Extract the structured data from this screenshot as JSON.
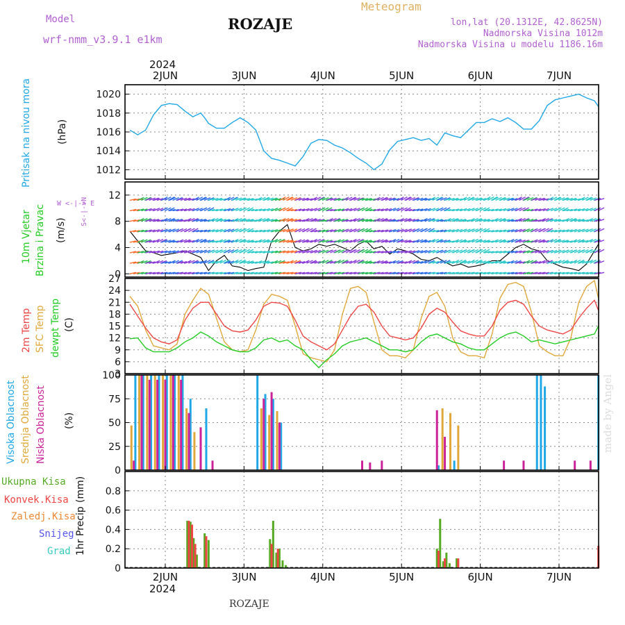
{
  "header": {
    "model_label": "Model",
    "model_name": "wrf-nmm_v3.9.1  e1km",
    "location": "ROZAJE",
    "meteogram_label": "Meteogram",
    "lonlat": "lon,lat (20.1312E, 42.8625N)",
    "altitude": "Nadmorska Visina 1012m",
    "model_altitude": "Nadmorska Visina u modelu 1186.16m"
  },
  "footer_location": "ROZAJE",
  "watermark": "made by Angel",
  "colors": {
    "pressure": "#1fa7e6",
    "temp2m": "#ee4444",
    "sfc": "#e0a83a",
    "dewpt": "#22cc22",
    "high_cloud": "#1fa7e6",
    "mid_cloud": "#e0a83a",
    "low_cloud": "#cc2299",
    "total_precip": "#55aa22",
    "convective": "#ee4444",
    "snow": "#5555ee",
    "graupel": "#33ccbb",
    "frozen": "#ee8833",
    "model_text": "#b060d0",
    "meteogram_text": "#e0b060"
  },
  "x_axis": {
    "year": "2024",
    "days": [
      "2JUN",
      "3JUN",
      "4JUN",
      "5JUN",
      "6JUN",
      "7JUN"
    ]
  },
  "wind_legend": {
    "n": "N",
    "s": "S",
    "w": "W",
    "e": "E",
    "arrows": "W <-|-> E",
    "ns": "S<-|->N"
  },
  "chart_data": [
    {
      "type": "line",
      "panel": "pressure",
      "ylabel_title": "Pritisak na nivou mora",
      "ylabel_unit": "(hPa)",
      "ylim": [
        1011,
        1021
      ],
      "yticks": [
        1012,
        1014,
        1016,
        1018,
        1020
      ],
      "x_days_start": 1.55,
      "x_days_end": 7.5,
      "series": [
        {
          "x": [
            1.55,
            1.65,
            1.75,
            1.85,
            1.95,
            2.05,
            2.15,
            2.25,
            2.35,
            2.45,
            2.5,
            2.55,
            2.65,
            2.75,
            2.85,
            2.95,
            3.05,
            3.15,
            3.25,
            3.35,
            3.45,
            3.55,
            3.65,
            3.75,
            3.85,
            3.95,
            4.05,
            4.15,
            4.25,
            4.35,
            4.45,
            4.55,
            4.65,
            4.75,
            4.85,
            4.95,
            5.05,
            5.15,
            5.25,
            5.35,
            5.45,
            5.55,
            5.65,
            5.75,
            5.85,
            5.95,
            6.05,
            6.15,
            6.25,
            6.35,
            6.45,
            6.55,
            6.65,
            6.75,
            6.85,
            6.95,
            7.05,
            7.15,
            7.25,
            7.35,
            7.45,
            7.5
          ],
          "y": [
            1016.2,
            1015.7,
            1016.2,
            1017.8,
            1018.8,
            1019.0,
            1018.9,
            1018.2,
            1017.6,
            1018.0,
            1017.5,
            1016.9,
            1016.4,
            1016.4,
            1017.0,
            1017.5,
            1017.0,
            1016.2,
            1014.0,
            1013.2,
            1013.0,
            1012.7,
            1012.4,
            1013.4,
            1014.8,
            1015.2,
            1015.1,
            1014.6,
            1014.3,
            1013.8,
            1013.2,
            1012.7,
            1012.0,
            1012.6,
            1014.1,
            1015.0,
            1015.2,
            1015.4,
            1015.1,
            1015.3,
            1014.6,
            1015.9,
            1015.6,
            1015.4,
            1016.2,
            1017.0,
            1017.0,
            1017.4,
            1017.1,
            1017.5,
            1017.0,
            1016.3,
            1016.3,
            1017.2,
            1018.8,
            1019.4,
            1019.6,
            1019.8,
            1020.0,
            1019.6,
            1019.3,
            1018.7
          ]
        }
      ]
    },
    {
      "type": "line",
      "panel": "wind",
      "ylabel_title": "10m Vjetar",
      "ylabel_title2": "Brzina i Pravac",
      "ylabel_unit": "(m/s)",
      "ylim": [
        -0.5,
        14
      ],
      "yticks": [
        0,
        4,
        8,
        12
      ],
      "x_days_start": 1.55,
      "x_days_end": 7.5,
      "series": [
        {
          "name": "wind speed",
          "x": [
            1.55,
            1.65,
            1.75,
            1.85,
            1.95,
            2.05,
            2.15,
            2.25,
            2.35,
            2.45,
            2.55,
            2.65,
            2.75,
            2.85,
            2.95,
            3.05,
            3.15,
            3.25,
            3.35,
            3.45,
            3.55,
            3.65,
            3.75,
            3.85,
            3.95,
            4.05,
            4.15,
            4.25,
            4.35,
            4.45,
            4.55,
            4.65,
            4.75,
            4.85,
            4.95,
            5.05,
            5.15,
            5.25,
            5.35,
            5.45,
            5.55,
            5.65,
            5.75,
            5.85,
            5.95,
            6.05,
            6.15,
            6.25,
            6.35,
            6.45,
            6.55,
            6.65,
            6.75,
            6.85,
            6.95,
            7.05,
            7.15,
            7.25,
            7.35,
            7.45,
            7.5
          ],
          "y": [
            6.5,
            5.0,
            3.5,
            3.2,
            2.8,
            3.0,
            3.2,
            3.5,
            3.0,
            2.5,
            0.5,
            2.0,
            2.8,
            1.2,
            1.0,
            0.5,
            0.8,
            1.0,
            5.0,
            6.5,
            7.5,
            4.0,
            3.5,
            3.8,
            4.5,
            4.2,
            4.5,
            4.0,
            3.5,
            4.5,
            5.0,
            3.8,
            4.2,
            3.0,
            3.8,
            3.5,
            3.0,
            2.2,
            2.0,
            2.5,
            1.8,
            1.2,
            1.5,
            1.0,
            1.2,
            1.5,
            2.0,
            2.0,
            3.0,
            4.0,
            4.5,
            3.8,
            3.5,
            2.0,
            1.5,
            1.0,
            0.8,
            0.5,
            1.5,
            3.5,
            4.5
          ]
        }
      ]
    },
    {
      "type": "line",
      "panel": "temperature",
      "ylabel_title": "2m Temp",
      "ylabel_title2": "SFC Temp",
      "ylabel_title3": "dewpt Temp",
      "ylabel_unit": "(C)",
      "ylim": [
        3,
        27
      ],
      "yticks": [
        3,
        6,
        9,
        12,
        15,
        18,
        21,
        24,
        27
      ],
      "x_days_start": 1.55,
      "x_days_end": 7.5,
      "series": [
        {
          "name": "2m Temp",
          "x": [
            1.55,
            1.65,
            1.75,
            1.85,
            1.95,
            2.05,
            2.15,
            2.25,
            2.35,
            2.45,
            2.55,
            2.65,
            2.75,
            2.85,
            2.95,
            3.05,
            3.15,
            3.25,
            3.35,
            3.45,
            3.55,
            3.65,
            3.75,
            3.85,
            3.95,
            4.05,
            4.15,
            4.25,
            4.35,
            4.45,
            4.55,
            4.65,
            4.75,
            4.85,
            4.95,
            5.05,
            5.15,
            5.25,
            5.35,
            5.45,
            5.55,
            5.65,
            5.75,
            5.85,
            5.95,
            6.05,
            6.15,
            6.25,
            6.35,
            6.45,
            6.55,
            6.65,
            6.75,
            6.85,
            6.95,
            7.05,
            7.15,
            7.25,
            7.35,
            7.45,
            7.5
          ],
          "y": [
            20.5,
            17.5,
            14.5,
            12.0,
            11.0,
            10.5,
            11.5,
            16.5,
            19.5,
            21.0,
            21.0,
            18.0,
            15.0,
            13.8,
            13.5,
            14.0,
            16.5,
            20.0,
            21.0,
            20.8,
            20.0,
            16.5,
            12.5,
            11.0,
            10.0,
            9.0,
            10.5,
            14.0,
            17.5,
            20.0,
            20.5,
            18.5,
            15.0,
            12.5,
            12.0,
            11.5,
            12.0,
            14.5,
            18.0,
            19.5,
            18.5,
            16.0,
            13.8,
            13.0,
            12.5,
            12.5,
            15.0,
            19.0,
            21.0,
            21.5,
            20.5,
            17.5,
            15.0,
            14.0,
            13.5,
            13.0,
            14.0,
            17.0,
            19.5,
            21.5,
            19.0
          ]
        },
        {
          "name": "SFC Temp",
          "x": [
            1.55,
            1.65,
            1.75,
            1.85,
            1.95,
            2.05,
            2.15,
            2.25,
            2.35,
            2.45,
            2.55,
            2.65,
            2.75,
            2.85,
            2.95,
            3.05,
            3.15,
            3.25,
            3.35,
            3.45,
            3.55,
            3.65,
            3.75,
            3.85,
            3.95,
            4.05,
            4.15,
            4.25,
            4.35,
            4.45,
            4.55,
            4.65,
            4.75,
            4.85,
            4.95,
            5.05,
            5.15,
            5.25,
            5.35,
            5.45,
            5.55,
            5.65,
            5.75,
            5.85,
            5.95,
            6.05,
            6.15,
            6.25,
            6.35,
            6.45,
            6.55,
            6.65,
            6.75,
            6.85,
            6.95,
            7.05,
            7.15,
            7.25,
            7.35,
            7.45,
            7.5
          ],
          "y": [
            22.5,
            20.0,
            14.0,
            10.0,
            9.5,
            9.0,
            10.5,
            18.0,
            21.5,
            24.5,
            23.0,
            17.0,
            11.0,
            9.0,
            8.5,
            9.0,
            14.0,
            20.5,
            23.0,
            22.5,
            21.5,
            15.0,
            8.0,
            7.0,
            6.5,
            6.0,
            9.0,
            18.0,
            24.5,
            25.0,
            23.5,
            16.0,
            9.0,
            7.5,
            7.5,
            7.0,
            9.0,
            17.0,
            22.5,
            23.5,
            20.0,
            12.0,
            8.5,
            7.5,
            7.5,
            7.0,
            13.0,
            22.0,
            25.5,
            26.0,
            25.0,
            18.5,
            10.0,
            8.5,
            7.5,
            7.5,
            12.0,
            21.0,
            25.0,
            26.5,
            22.0
          ]
        },
        {
          "name": "dewpt Temp",
          "x": [
            1.55,
            1.65,
            1.75,
            1.85,
            1.95,
            2.05,
            2.15,
            2.25,
            2.35,
            2.45,
            2.55,
            2.65,
            2.75,
            2.85,
            2.95,
            3.05,
            3.15,
            3.25,
            3.35,
            3.45,
            3.55,
            3.65,
            3.75,
            3.85,
            3.95,
            4.05,
            4.15,
            4.25,
            4.35,
            4.45,
            4.55,
            4.65,
            4.75,
            4.85,
            4.95,
            5.05,
            5.15,
            5.25,
            5.35,
            5.45,
            5.55,
            5.65,
            5.75,
            5.85,
            5.95,
            6.05,
            6.15,
            6.25,
            6.35,
            6.45,
            6.55,
            6.65,
            6.75,
            6.85,
            6.95,
            7.05,
            7.15,
            7.25,
            7.35,
            7.45,
            7.5
          ],
          "y": [
            11.8,
            12.0,
            9.5,
            8.5,
            8.5,
            8.5,
            9.5,
            11.0,
            12.0,
            13.5,
            12.5,
            11.0,
            10.0,
            9.0,
            8.5,
            8.5,
            9.5,
            11.5,
            12.0,
            11.0,
            11.5,
            10.0,
            9.0,
            6.5,
            4.5,
            6.5,
            8.0,
            10.0,
            11.0,
            11.5,
            12.0,
            11.0,
            10.0,
            9.0,
            9.0,
            8.5,
            9.0,
            11.0,
            12.5,
            13.0,
            12.0,
            11.0,
            10.5,
            9.5,
            9.0,
            9.0,
            10.5,
            12.0,
            13.0,
            13.5,
            12.5,
            11.0,
            11.5,
            11.0,
            10.5,
            11.0,
            11.5,
            12.0,
            12.5,
            13.0,
            15.0
          ]
        }
      ]
    },
    {
      "type": "bar",
      "panel": "clouds",
      "ylabel_title": "Visoka Oblacnost",
      "ylabel_title2": "Srednja Oblacnost",
      "ylabel_title3": "Niska Oblacnost",
      "ylabel_unit": "(%)",
      "ylim": [
        0,
        100
      ],
      "yticks": [
        0,
        25,
        50,
        75,
        100
      ],
      "series": [
        {
          "name": "Visoka Oblacnost",
          "x": [
            1.62,
            1.72,
            1.82,
            1.92,
            2.02,
            2.12,
            2.22,
            2.32,
            2.52,
            3.17,
            3.27,
            3.37,
            3.47,
            5.47,
            5.67,
            6.72,
            6.77,
            6.82,
            7.5
          ],
          "y": [
            100,
            100,
            100,
            100,
            100,
            100,
            100,
            75,
            65,
            100,
            80,
            75,
            50,
            5,
            10,
            100,
            100,
            88,
            100
          ]
        },
        {
          "name": "Srednja Oblacnost",
          "x": [
            1.57,
            1.67,
            1.77,
            1.87,
            1.97,
            2.07,
            2.17,
            2.27,
            2.37,
            3.22,
            3.32,
            3.42,
            5.52,
            5.62,
            5.72
          ],
          "y": [
            47,
            100,
            100,
            100,
            100,
            100,
            100,
            65,
            40,
            65,
            58,
            62,
            65,
            60,
            47
          ]
        },
        {
          "name": "Niska Oblacnost",
          "x": [
            1.6,
            1.7,
            1.8,
            1.9,
            2.0,
            2.1,
            2.2,
            2.3,
            2.45,
            2.6,
            3.25,
            3.35,
            3.45,
            4.5,
            4.6,
            4.75,
            5.45,
            5.55,
            6.3,
            6.55,
            7.2,
            7.4
          ],
          "y": [
            10,
            100,
            95,
            95,
            95,
            100,
            95,
            60,
            45,
            10,
            75,
            82,
            50,
            10,
            8,
            10,
            63,
            35,
            10,
            10,
            10,
            10
          ]
        }
      ]
    },
    {
      "type": "bar",
      "panel": "precip",
      "ylabel_title": "1hr Precip",
      "ylabel_unit": "(mm)",
      "ylim": [
        0,
        1.0
      ],
      "yticks": [
        0,
        0.2,
        0.4,
        0.6,
        0.8
      ],
      "legend": [
        "Ukupna Kisa",
        "Konvek.Kisa",
        "Zaledj.Kisa",
        "Snijeg",
        "Grad"
      ],
      "series": [
        {
          "name": "Ukupna Kisa",
          "x": [
            2.28,
            2.32,
            2.36,
            2.4,
            2.5,
            2.55,
            3.33,
            3.37,
            3.41,
            3.45,
            3.49,
            3.53,
            5.45,
            5.49,
            5.53,
            5.57,
            5.61,
            5.7
          ],
          "y": [
            0.49,
            0.48,
            0.31,
            0.14,
            0.36,
            0.29,
            0.3,
            0.49,
            0.16,
            0.2,
            0.08,
            0.03,
            0.2,
            0.51,
            0.07,
            0.16,
            0.05,
            0.1
          ]
        },
        {
          "name": "Konvek.Kisa",
          "x": [
            2.3,
            2.34,
            2.38,
            2.52,
            3.35,
            3.43,
            5.47,
            5.55,
            5.72,
            7.5
          ],
          "y": [
            0.49,
            0.45,
            0.25,
            0.33,
            0.25,
            0.2,
            0.18,
            0.1,
            0.1,
            0.23
          ]
        }
      ]
    }
  ]
}
